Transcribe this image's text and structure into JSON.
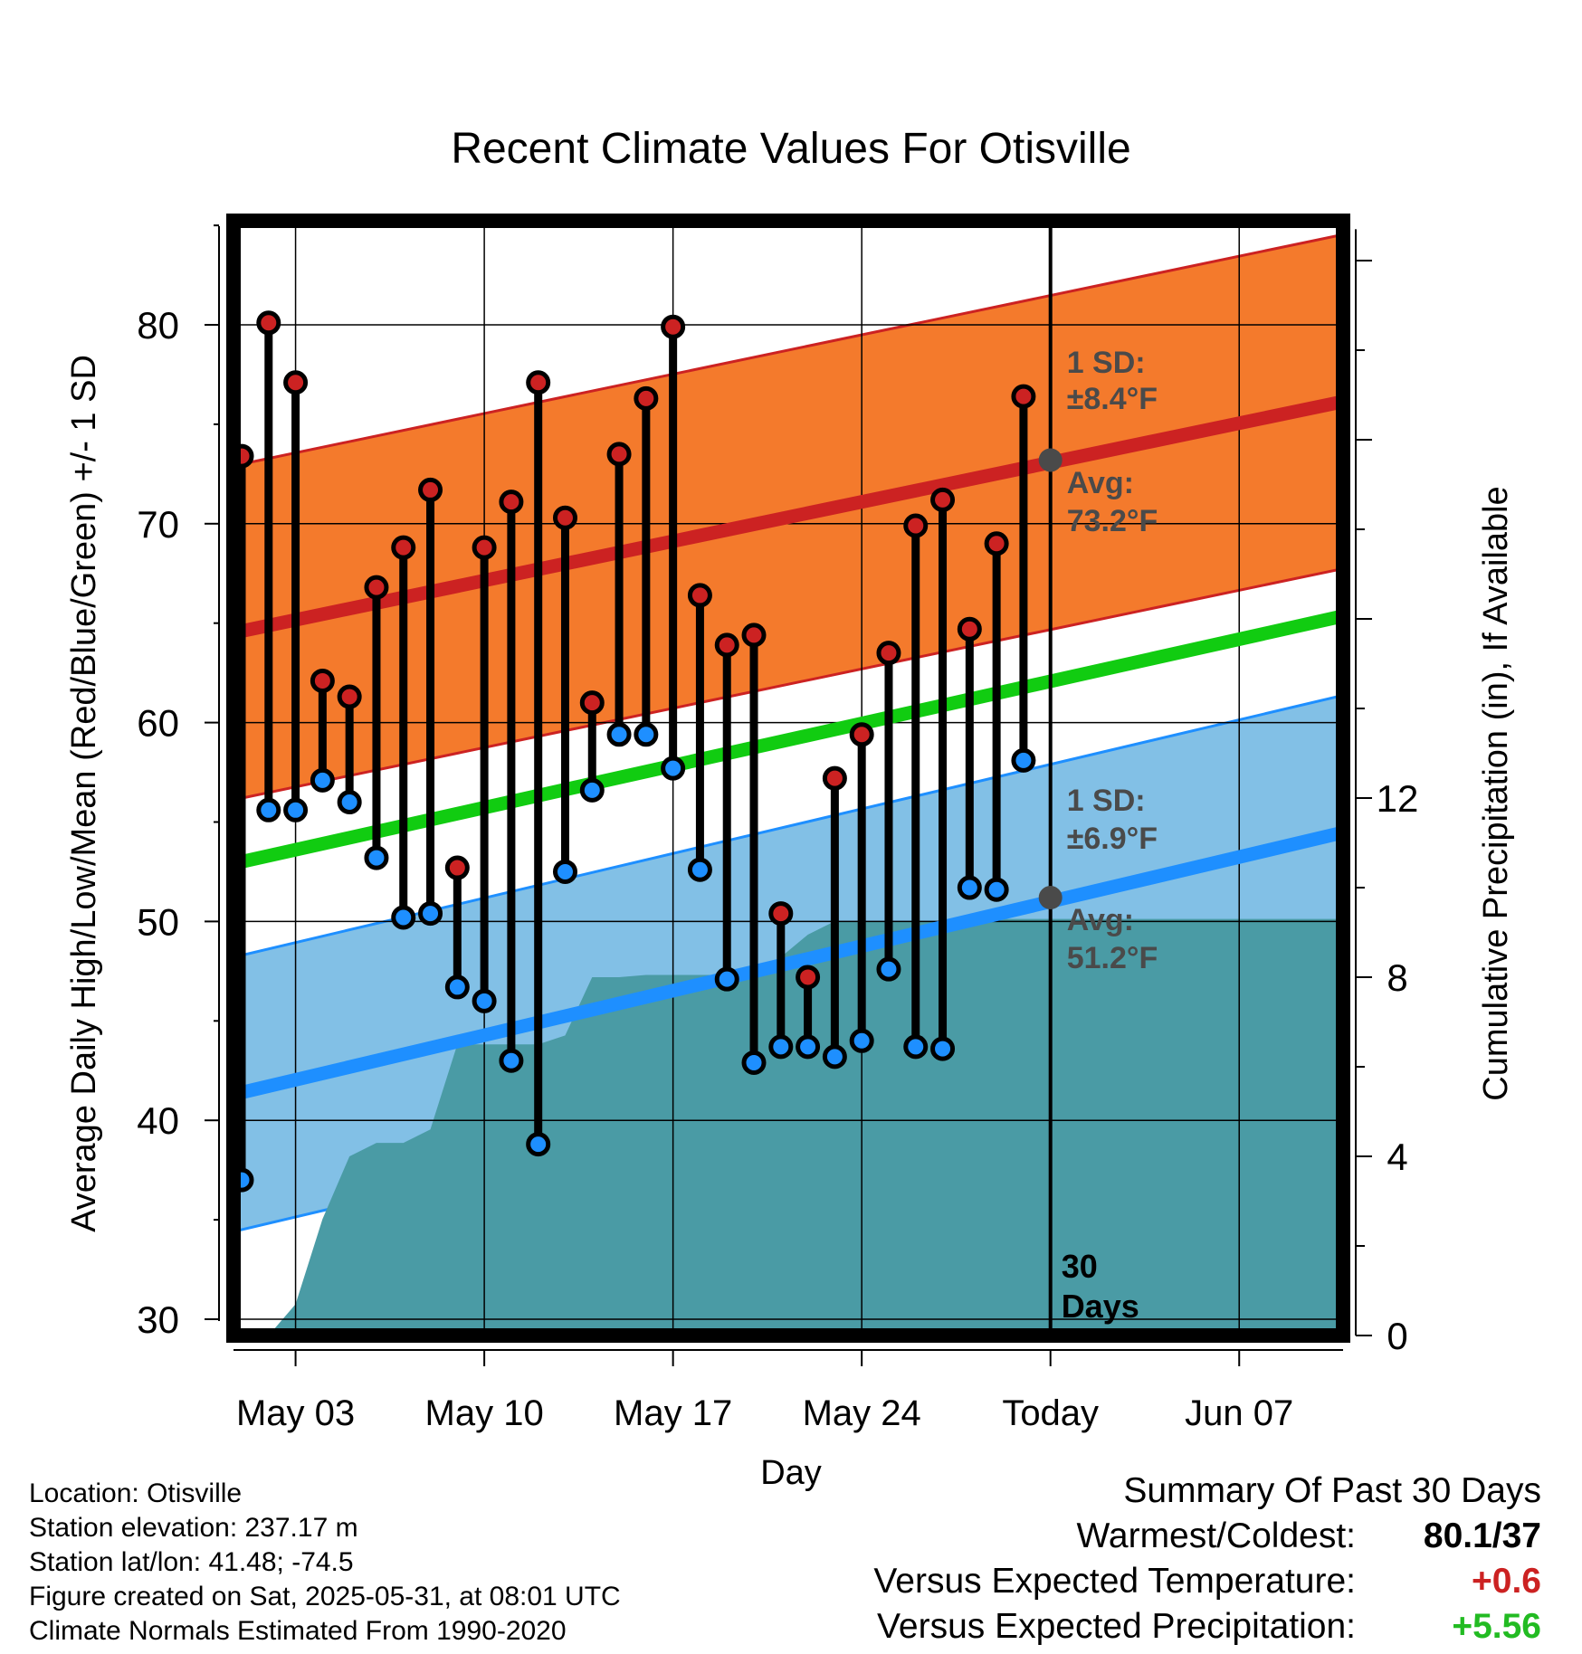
{
  "chart_data": {
    "type": "line",
    "title": "Recent Climate Values For Otisville",
    "xlabel": "Day",
    "ylabel": "Average Daily High/Low/Mean (Red/Blue/Green) +/- 1 SD",
    "y2label": "Cumulative Precipitation (in), If Available",
    "x_tick_labels": [
      "May 03",
      "May 10",
      "May 17",
      "May 24",
      "Today",
      "Jun 07"
    ],
    "y_ticks": [
      30,
      40,
      50,
      60,
      70,
      80
    ],
    "y2_ticks": [
      0,
      4,
      8,
      12
    ],
    "ylim": [
      29.5,
      85
    ],
    "y2lim": [
      0,
      24.7
    ],
    "today_label": "30 Days",
    "normals": {
      "high_avg_start": 64.6,
      "high_avg_end": 75.9,
      "high_sd": 8.4,
      "low_avg_start": 41.4,
      "low_avg_end": 54.2,
      "low_sd": 6.9,
      "mean_start": 53.0,
      "mean_end": 65.1
    },
    "annotations": {
      "high_sd": {
        "title": "1 SD:",
        "value": "±8.4°F"
      },
      "high_avg": {
        "title": "Avg:",
        "value": "73.2°F",
        "y": 73.2
      },
      "low_sd": {
        "title": "1 SD:",
        "value": "±6.9°F"
      },
      "low_avg": {
        "title": "Avg:",
        "value": "51.2°F",
        "y": 51.2
      }
    },
    "highs": [
      73.4,
      80.1,
      77.1,
      62.1,
      61.3,
      66.8,
      68.8,
      71.7,
      52.7,
      68.8,
      71.1,
      77.1,
      70.3,
      61.0,
      73.5,
      76.3,
      79.9,
      66.4,
      63.9,
      64.4,
      50.4,
      47.2,
      57.2,
      59.4,
      63.5,
      69.9,
      71.2,
      64.7,
      69.0,
      76.4
    ],
    "lows": [
      37.0,
      55.6,
      55.6,
      57.1,
      56.0,
      53.2,
      50.2,
      50.4,
      46.7,
      46.0,
      43.0,
      38.8,
      52.5,
      56.6,
      59.4,
      59.4,
      57.7,
      52.6,
      47.1,
      42.9,
      43.7,
      43.7,
      43.2,
      44.0,
      47.6,
      43.7,
      43.6,
      51.7,
      51.6,
      58.1
    ],
    "precip_cumulative": [
      0.0,
      0.0,
      0.7,
      2.6,
      4.0,
      4.3,
      4.3,
      4.6,
      6.5,
      6.5,
      6.5,
      6.5,
      6.7,
      8.0,
      8.0,
      8.05,
      8.05,
      8.05,
      8.05,
      8.05,
      8.45,
      8.95,
      9.25,
      9.25,
      9.25,
      9.25,
      9.25,
      9.25,
      9.3,
      9.3,
      9.3,
      9.3,
      9.3,
      9.3,
      9.3,
      9.3,
      9.3,
      9.3,
      9.3,
      9.3,
      9.3
    ]
  },
  "info": {
    "location": "Location: Otisville",
    "elevation": "Station elevation: 237.17 m",
    "latlon": "Station lat/lon: 41.48; -74.5",
    "created": "Figure created on Sat, 2025-05-31, at 08:01 UTC",
    "normals": "Climate Normals Estimated From 1990-2020"
  },
  "summary": {
    "title": "Summary Of Past 30 Days",
    "warmest_label": "Warmest/Coldest:",
    "warmest_value": "80.1/37",
    "temp_label": "Versus Expected Temperature:",
    "temp_value": "+0.6",
    "temp_color": "#cc2222",
    "precip_label": "Versus Expected Precipitation:",
    "precip_value": "+5.56",
    "precip_color": "#22bb22"
  }
}
